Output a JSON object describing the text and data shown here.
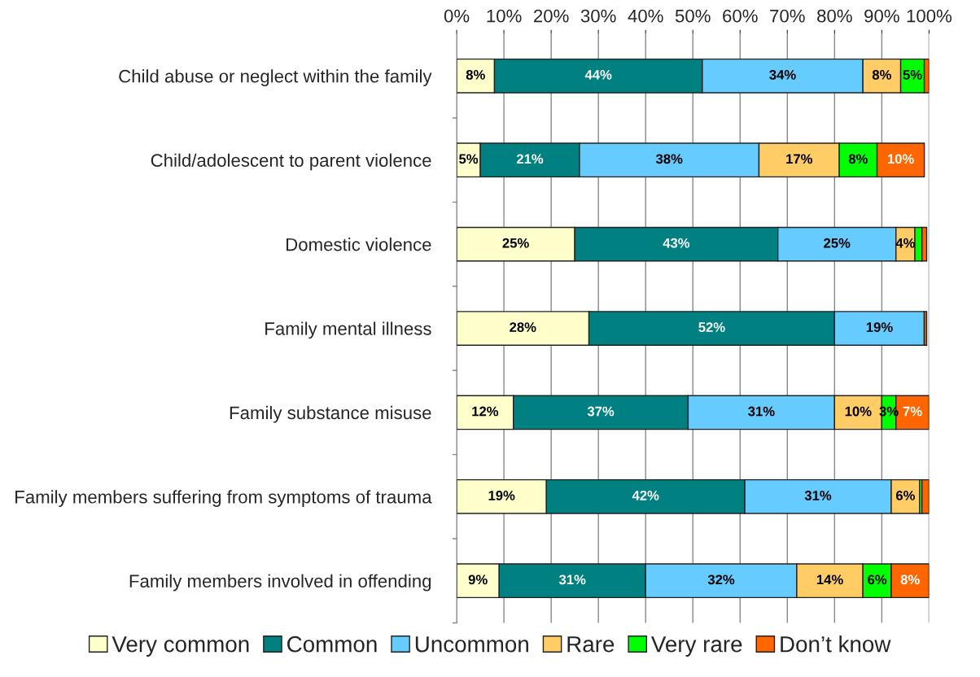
{
  "chart_data": {
    "type": "bar",
    "orientation": "horizontal",
    "stacked": true,
    "categories": [
      "Child abuse or neglect within the family",
      "Child/adolescent to parent violence",
      "Domestic violence",
      "Family mental illness",
      "Family substance misuse",
      "Family members suffering from symptoms of trauma",
      "Family members involved in offending"
    ],
    "series": [
      {
        "name": "Very common",
        "color": "#ffffcc",
        "values": [
          8,
          5,
          25,
          28,
          12,
          19,
          9
        ],
        "value_labels": [
          "8%",
          "5%",
          "25%",
          "28%",
          "12%",
          "19%",
          "9%"
        ]
      },
      {
        "name": "Common",
        "color": "#008080",
        "values": [
          44,
          21,
          43,
          52,
          37,
          42,
          31
        ],
        "value_labels": [
          "44%",
          "21%",
          "43%",
          "52%",
          "37%",
          "42%",
          "31%"
        ]
      },
      {
        "name": "Uncommon",
        "color": "#66ccff",
        "values": [
          34,
          38,
          25,
          19,
          31,
          31,
          32
        ],
        "value_labels": [
          "34%",
          "38%",
          "25%",
          "19%",
          "31%",
          "31%",
          "32%"
        ]
      },
      {
        "name": "Rare",
        "color": "#ffcc66",
        "values": [
          8,
          17,
          4,
          0,
          10,
          6,
          14
        ],
        "value_labels": [
          "8%",
          "17%",
          "4%",
          null,
          "10%",
          "6%",
          "14%"
        ]
      },
      {
        "name": "Very rare",
        "color": "#00ff00",
        "values": [
          5,
          8,
          1.5,
          0,
          3,
          0.5,
          6
        ],
        "value_labels": [
          "5%",
          "8%",
          null,
          null,
          "3%",
          null,
          "6%"
        ]
      },
      {
        "name": "Don’t know",
        "color": "#ff6600",
        "values": [
          1,
          10,
          1,
          0.5,
          7,
          1.5,
          8
        ],
        "value_labels": [
          null,
          "10%",
          null,
          null,
          "7%",
          null,
          "8%"
        ]
      }
    ],
    "xlim": [
      0,
      100
    ],
    "xticks": [
      {
        "value": 0,
        "label": "0%"
      },
      {
        "value": 10,
        "label": "10%"
      },
      {
        "value": 20,
        "label": "20%"
      },
      {
        "value": 30,
        "label": "30%"
      },
      {
        "value": 40,
        "label": "40%"
      },
      {
        "value": 50,
        "label": "50%"
      },
      {
        "value": 60,
        "label": "60%"
      },
      {
        "value": 70,
        "label": "70%"
      },
      {
        "value": 80,
        "label": "80%"
      },
      {
        "value": 90,
        "label": "90%"
      },
      {
        "value": 100,
        "label": "100%"
      }
    ],
    "grid": "x",
    "legend": "bottom"
  }
}
